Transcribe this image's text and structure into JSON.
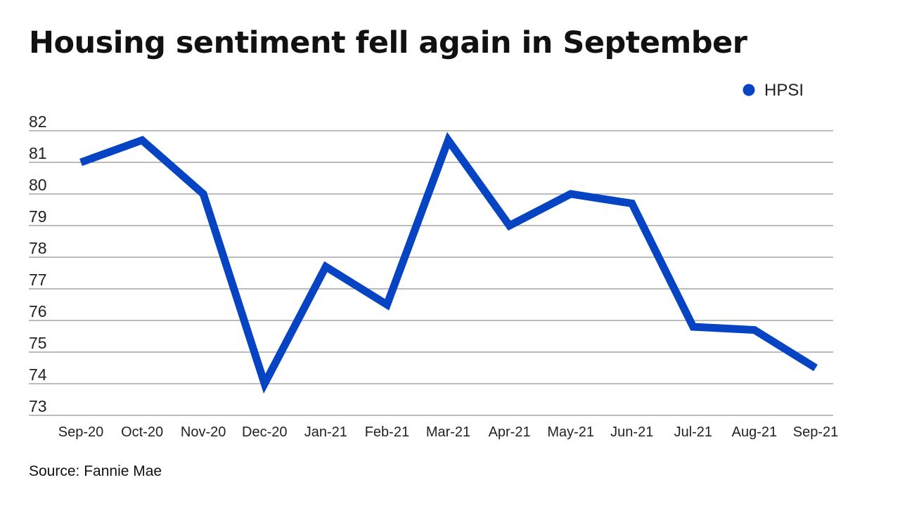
{
  "chart_data": {
    "type": "line",
    "title": "Housing sentiment fell again in September",
    "source": "Source: Fannie Mae",
    "categories": [
      "Sep-20",
      "Oct-20",
      "Nov-20",
      "Dec-20",
      "Jan-21",
      "Feb-21",
      "Mar-21",
      "Apr-21",
      "May-21",
      "Jun-21",
      "Jul-21",
      "Aug-21",
      "Sep-21"
    ],
    "series": [
      {
        "name": "HPSI",
        "color": "#0644c4",
        "values": [
          81.0,
          81.7,
          80.0,
          74.0,
          77.7,
          76.5,
          81.7,
          79.0,
          80.0,
          79.7,
          75.8,
          75.7,
          74.5
        ]
      }
    ],
    "yticks": [
      73,
      74,
      75,
      76,
      77,
      78,
      79,
      80,
      81,
      82
    ],
    "ylim": [
      73,
      82
    ],
    "grid": true,
    "gridline_color": "#7a7a7a",
    "legend_position": "top-right",
    "xlabel": "",
    "ylabel": ""
  }
}
